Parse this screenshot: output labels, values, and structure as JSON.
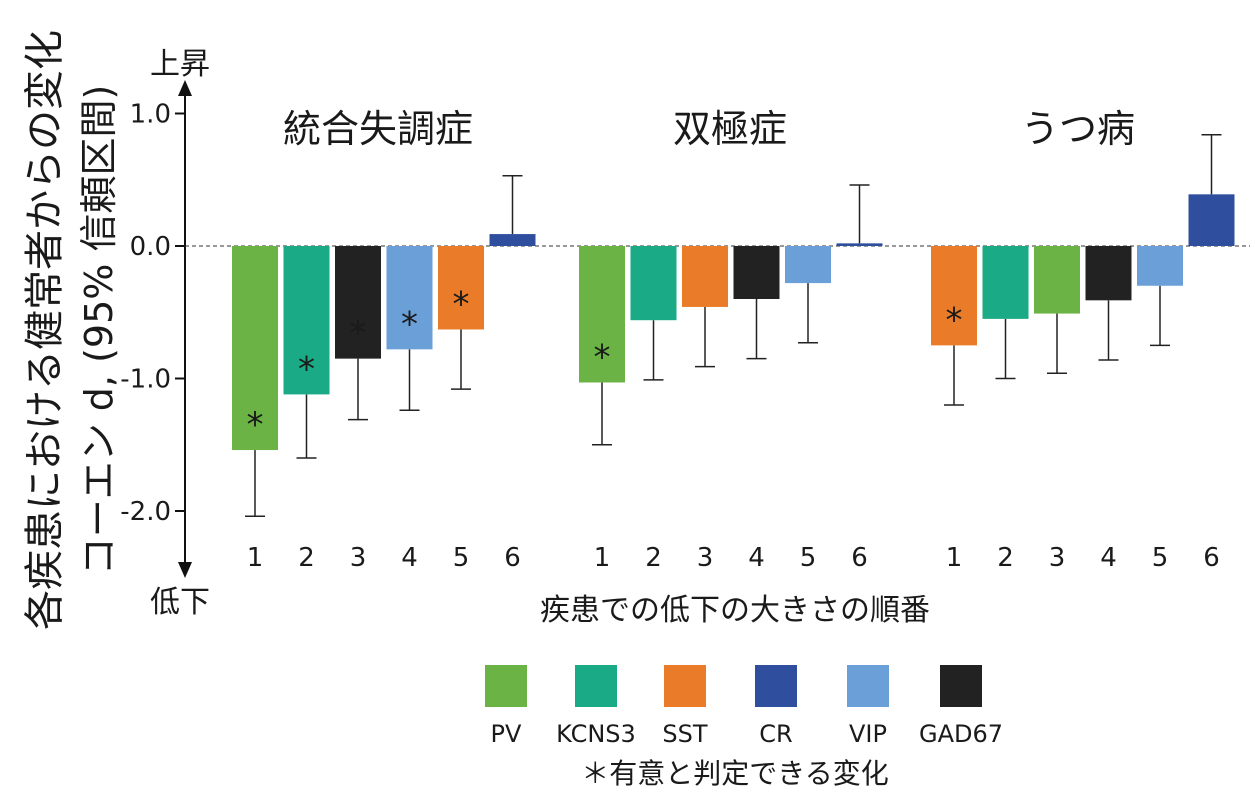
{
  "chart_data": {
    "type": "bar",
    "ylabel_line1": "各疾患における健常者からの変化",
    "ylabel_line2": "コーエン d, (95% 信頼区間)",
    "xlabel": "疾患での低下の大きさの順番",
    "arrow_up_label": "上昇",
    "arrow_down_label": "低下",
    "ylim": [
      -2.3,
      1.2
    ],
    "yticks": [
      {
        "value": 1.0,
        "label": "1.0"
      },
      {
        "value": 0.0,
        "label": "0.0"
      },
      {
        "value": -1.0,
        "label": "-1.0"
      },
      {
        "value": -2.0,
        "label": "-2.0"
      }
    ],
    "colors": {
      "PV": "#6ab344",
      "KCNS3": "#1aaa85",
      "SST": "#e97b29",
      "CR": "#2f4f9e",
      "VIP": "#6a9fd8",
      "GAD67": "#222222"
    },
    "groups": [
      {
        "title": "統合失調症",
        "bars": [
          {
            "rank": "1",
            "marker": "PV",
            "value": -1.54,
            "ci_low": -2.04,
            "ci_high": -1.54,
            "significant": true
          },
          {
            "rank": "2",
            "marker": "KCNS3",
            "value": -1.12,
            "ci_low": -1.6,
            "ci_high": -1.12,
            "significant": true
          },
          {
            "rank": "3",
            "marker": "GAD67",
            "value": -0.85,
            "ci_low": -1.31,
            "ci_high": -0.85,
            "significant": true
          },
          {
            "rank": "4",
            "marker": "VIP",
            "value": -0.78,
            "ci_low": -1.24,
            "ci_high": -0.78,
            "significant": true
          },
          {
            "rank": "5",
            "marker": "SST",
            "value": -0.63,
            "ci_low": -1.08,
            "ci_high": -0.63,
            "significant": true
          },
          {
            "rank": "6",
            "marker": "CR",
            "value": 0.09,
            "ci_low": 0.09,
            "ci_high": 0.53,
            "significant": false
          }
        ]
      },
      {
        "title": "双極症",
        "bars": [
          {
            "rank": "1",
            "marker": "PV",
            "value": -1.03,
            "ci_low": -1.5,
            "ci_high": -1.03,
            "significant": true
          },
          {
            "rank": "2",
            "marker": "KCNS3",
            "value": -0.56,
            "ci_low": -1.01,
            "ci_high": -0.56,
            "significant": false
          },
          {
            "rank": "3",
            "marker": "SST",
            "value": -0.46,
            "ci_low": -0.91,
            "ci_high": -0.46,
            "significant": false
          },
          {
            "rank": "4",
            "marker": "GAD67",
            "value": -0.4,
            "ci_low": -0.85,
            "ci_high": -0.4,
            "significant": false
          },
          {
            "rank": "5",
            "marker": "VIP",
            "value": -0.28,
            "ci_low": -0.73,
            "ci_high": -0.28,
            "significant": false
          },
          {
            "rank": "6",
            "marker": "CR",
            "value": 0.02,
            "ci_low": 0.02,
            "ci_high": 0.46,
            "significant": false
          }
        ]
      },
      {
        "title": "うつ病",
        "bars": [
          {
            "rank": "1",
            "marker": "SST",
            "value": -0.75,
            "ci_low": -1.2,
            "ci_high": -0.75,
            "significant": true
          },
          {
            "rank": "2",
            "marker": "KCNS3",
            "value": -0.55,
            "ci_low": -1.0,
            "ci_high": -0.55,
            "significant": false
          },
          {
            "rank": "3",
            "marker": "PV",
            "value": -0.51,
            "ci_low": -0.96,
            "ci_high": -0.51,
            "significant": false
          },
          {
            "rank": "4",
            "marker": "GAD67",
            "value": -0.41,
            "ci_low": -0.86,
            "ci_high": -0.41,
            "significant": false
          },
          {
            "rank": "5",
            "marker": "VIP",
            "value": -0.3,
            "ci_low": -0.75,
            "ci_high": -0.3,
            "significant": false
          },
          {
            "rank": "6",
            "marker": "CR",
            "value": 0.39,
            "ci_low": 0.39,
            "ci_high": 0.84,
            "significant": false
          }
        ]
      }
    ],
    "significance_symbol": "*",
    "legend": [
      {
        "name": "PV",
        "color": "#6ab344"
      },
      {
        "name": "KCNS3",
        "color": "#1aaa85"
      },
      {
        "name": "SST",
        "color": "#e97b29"
      },
      {
        "name": "CR",
        "color": "#2f4f9e"
      },
      {
        "name": "VIP",
        "color": "#6a9fd8"
      },
      {
        "name": "GAD67",
        "color": "#222222"
      }
    ],
    "footnote": "＊有意と判定できる変化"
  }
}
